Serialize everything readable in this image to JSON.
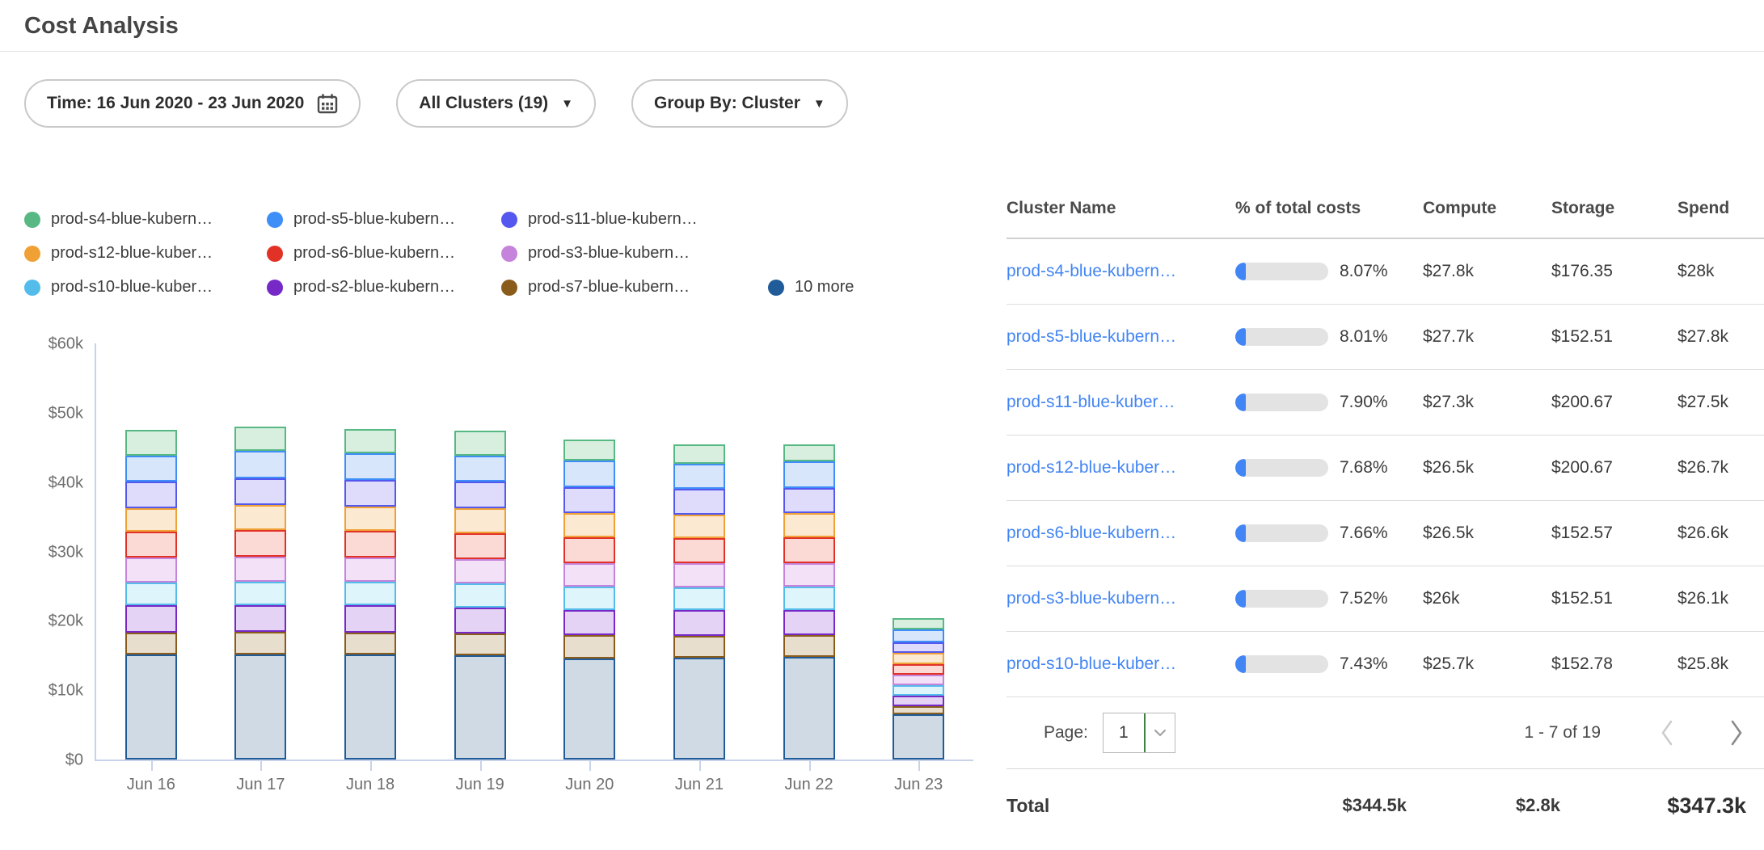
{
  "page": {
    "title": "Cost Analysis"
  },
  "filters": {
    "time": {
      "label": "Time: 16 Jun 2020 - 23 Jun 2020",
      "icon": "calendar-icon"
    },
    "clusters": {
      "label": "All Clusters (19)",
      "icon": "caret-down-icon"
    },
    "group_by": {
      "label": "Group By: Cluster",
      "icon": "caret-down-icon"
    }
  },
  "icons": {
    "caret_down_glyph": "▼"
  },
  "chart_data": {
    "type": "bar",
    "stacked": true,
    "categories": [
      "Jun 16",
      "Jun 17",
      "Jun 18",
      "Jun 19",
      "Jun 20",
      "Jun 21",
      "Jun 22",
      "Jun 23"
    ],
    "ylim": [
      0,
      60000
    ],
    "ytick_labels": [
      "$0",
      "$10k",
      "$20k",
      "$30k",
      "$40k",
      "$50k",
      "$60k"
    ],
    "grid": false,
    "legend_position": "top",
    "series": [
      {
        "name": "10 more",
        "color": "#1f5c99",
        "fill": "#cfdae4",
        "values": [
          15200,
          15100,
          15200,
          15000,
          14600,
          14700,
          14800,
          6500
        ]
      },
      {
        "name": "prod-s7-blue-kubern…",
        "color": "#8a5c1c",
        "fill": "#e8decd",
        "values": [
          3100,
          3300,
          3150,
          3200,
          3300,
          3100,
          3200,
          1200
        ]
      },
      {
        "name": "prod-s2-blue-kubern…",
        "color": "#7629c6",
        "fill": "#e5d3f6",
        "values": [
          3900,
          3850,
          3900,
          3750,
          3600,
          3700,
          3600,
          1550
        ]
      },
      {
        "name": "prod-s10-blue-kuber…",
        "color": "#54bcea",
        "fill": "#dff5fc",
        "values": [
          3300,
          3400,
          3350,
          3400,
          3400,
          3300,
          3300,
          1450
        ]
      },
      {
        "name": "prod-s3-blue-kubern…",
        "color": "#c583db",
        "fill": "#f3e2f7",
        "values": [
          3600,
          3550,
          3550,
          3500,
          3450,
          3500,
          3400,
          1500
        ]
      },
      {
        "name": "prod-s6-blue-kubern…",
        "color": "#e23228",
        "fill": "#fbd9d5",
        "values": [
          3800,
          3900,
          3850,
          3800,
          3700,
          3600,
          3700,
          1600
        ]
      },
      {
        "name": "prod-s12-blue-kuber…",
        "color": "#f0a135",
        "fill": "#fbe9d2",
        "values": [
          3400,
          3600,
          3500,
          3600,
          3500,
          3400,
          3500,
          1550
        ]
      },
      {
        "name": "prod-s11-blue-kubern…",
        "color": "#5558ee",
        "fill": "#dedcfa",
        "values": [
          3800,
          3900,
          3850,
          3800,
          3750,
          3700,
          3700,
          1600
        ]
      },
      {
        "name": "prod-s5-blue-kubern…",
        "color": "#3e8ef7",
        "fill": "#d8e6fc",
        "values": [
          3700,
          3900,
          3800,
          3800,
          3800,
          3700,
          3800,
          1800
        ]
      },
      {
        "name": "prod-s4-blue-kubern…",
        "color": "#57b884",
        "fill": "#d8efdf",
        "values": [
          3700,
          3500,
          3550,
          3550,
          3000,
          2700,
          2400,
          1600
        ]
      }
    ],
    "legend_rows": [
      [
        {
          "label": "prod-s4-blue-kubern…",
          "color": "#57b884"
        },
        {
          "label": "prod-s5-blue-kubern…",
          "color": "#3e8ef7"
        },
        {
          "label": "prod-s11-blue-kubern…",
          "color": "#5558ee"
        }
      ],
      [
        {
          "label": "prod-s12-blue-kuber…",
          "color": "#f0a135"
        },
        {
          "label": "prod-s6-blue-kubern…",
          "color": "#e23228"
        },
        {
          "label": "prod-s3-blue-kubern…",
          "color": "#c583db"
        }
      ],
      [
        {
          "label": "prod-s10-blue-kuber…",
          "color": "#54bcea"
        },
        {
          "label": "prod-s2-blue-kubern…",
          "color": "#7629c6"
        },
        {
          "label": "prod-s7-blue-kubern…",
          "color": "#8a5c1c"
        },
        {
          "label": "10 more",
          "color": "#1f5c99"
        }
      ]
    ]
  },
  "table": {
    "columns": [
      "Cluster Name",
      "% of total costs",
      "Compute",
      "Storage",
      "Spend"
    ],
    "link_color": "#4285f4",
    "rows": [
      {
        "name": "prod-s4-blue-kubern…",
        "pct": "8.07%",
        "pct_value": 8.07,
        "compute": "$27.8k",
        "storage": "$176.35",
        "spend": "$28k"
      },
      {
        "name": "prod-s5-blue-kubern…",
        "pct": "8.01%",
        "pct_value": 8.01,
        "compute": "$27.7k",
        "storage": "$152.51",
        "spend": "$27.8k"
      },
      {
        "name": "prod-s11-blue-kuber…",
        "pct": "7.90%",
        "pct_value": 7.9,
        "compute": "$27.3k",
        "storage": "$200.67",
        "spend": "$27.5k"
      },
      {
        "name": "prod-s12-blue-kuber…",
        "pct": "7.68%",
        "pct_value": 7.68,
        "compute": "$26.5k",
        "storage": "$200.67",
        "spend": "$26.7k"
      },
      {
        "name": "prod-s6-blue-kubern…",
        "pct": "7.66%",
        "pct_value": 7.66,
        "compute": "$26.5k",
        "storage": "$152.57",
        "spend": "$26.6k"
      },
      {
        "name": "prod-s3-blue-kubern…",
        "pct": "7.52%",
        "pct_value": 7.52,
        "compute": "$26k",
        "storage": "$152.51",
        "spend": "$26.1k"
      },
      {
        "name": "prod-s10-blue-kuber…",
        "pct": "7.43%",
        "pct_value": 7.43,
        "compute": "$25.7k",
        "storage": "$152.78",
        "spend": "$25.8k"
      }
    ],
    "pagination": {
      "label": "Page:",
      "value": "1",
      "range": "1 - 7 of 19"
    },
    "total": {
      "label": "Total",
      "compute": "$344.5k",
      "storage": "$2.8k",
      "spend": "$347.3k"
    }
  }
}
